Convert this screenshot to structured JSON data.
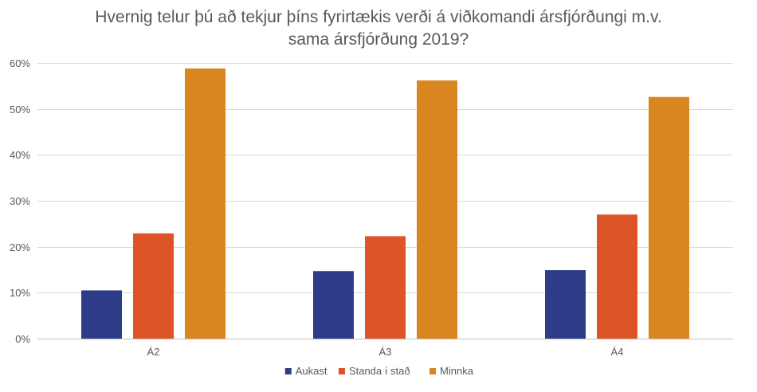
{
  "chart_data": {
    "type": "bar",
    "title_lines": [
      "Hvernig telur þú að tekjur þíns fyrirtækis verði á viðkomandi ársfjórðungi m.v.",
      "sama ársfjórðung 2019?"
    ],
    "categories": [
      "Á2",
      "Á3",
      "Á4"
    ],
    "series": [
      {
        "name": "Aukast",
        "color": "#2e3d8a",
        "values": [
          10.5,
          14.7,
          14.9
        ]
      },
      {
        "name": "Standa í stað",
        "color": "#dd5426",
        "values": [
          22.9,
          22.3,
          27.0
        ]
      },
      {
        "name": "Minnka",
        "color": "#d98520",
        "values": [
          58.8,
          56.2,
          52.6
        ]
      }
    ],
    "ylim": [
      0,
      60
    ],
    "yticks": [
      0,
      10,
      20,
      30,
      40,
      50,
      60
    ],
    "ytick_labels": [
      "0%",
      "10%",
      "20%",
      "30%",
      "40%",
      "50%",
      "60%"
    ],
    "grid": true,
    "legend_position": "bottom"
  }
}
